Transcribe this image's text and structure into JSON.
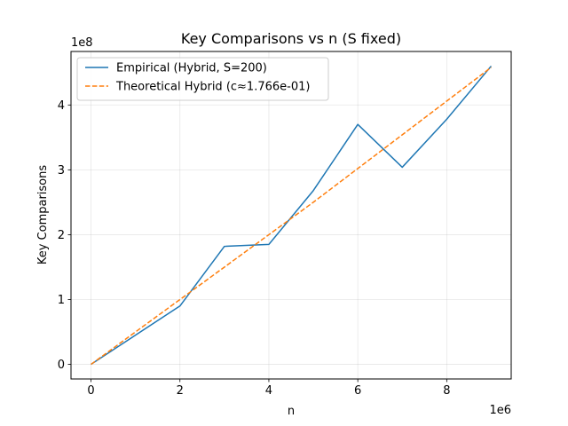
{
  "chart_data": {
    "type": "line",
    "title": "Key Comparisons vs n (S fixed)",
    "xlabel": "n",
    "ylabel": "Key Comparisons",
    "x_offset_label": "1e6",
    "y_offset_label": "1e8",
    "xlim": [
      -450000,
      9450000
    ],
    "ylim": [
      -22500000,
      482500000
    ],
    "x_ticks": [
      0,
      2000000,
      4000000,
      6000000,
      8000000
    ],
    "x_tick_labels": [
      "0",
      "2",
      "4",
      "6",
      "8"
    ],
    "y_ticks": [
      0,
      100000000,
      200000000,
      300000000,
      400000000
    ],
    "y_tick_labels": [
      "0",
      "1",
      "2",
      "3",
      "4"
    ],
    "grid": true,
    "legend_position": "top-left",
    "series": [
      {
        "name": "Empirical (Hybrid, S=200)",
        "style": "solid",
        "color": "#1f77b4",
        "x": [
          0,
          1000000,
          2000000,
          3000000,
          4000000,
          5000000,
          6000000,
          7000000,
          8000000,
          9000000
        ],
        "y": [
          0,
          45000000,
          90000000,
          182000000,
          185000000,
          268000000,
          370000000,
          304000000,
          378000000,
          460000000
        ]
      },
      {
        "name": "Theoretical Hybrid (c≈1.766e-01)",
        "style": "dashed",
        "color": "#ff7f0e",
        "x": [
          0,
          1000000,
          2000000,
          3000000,
          4000000,
          5000000,
          6000000,
          7000000,
          8000000,
          9000000
        ],
        "y": [
          0,
          50000000,
          100000000,
          150000000,
          200000000,
          250000000,
          302000000,
          354000000,
          406000000,
          458000000
        ]
      }
    ]
  }
}
